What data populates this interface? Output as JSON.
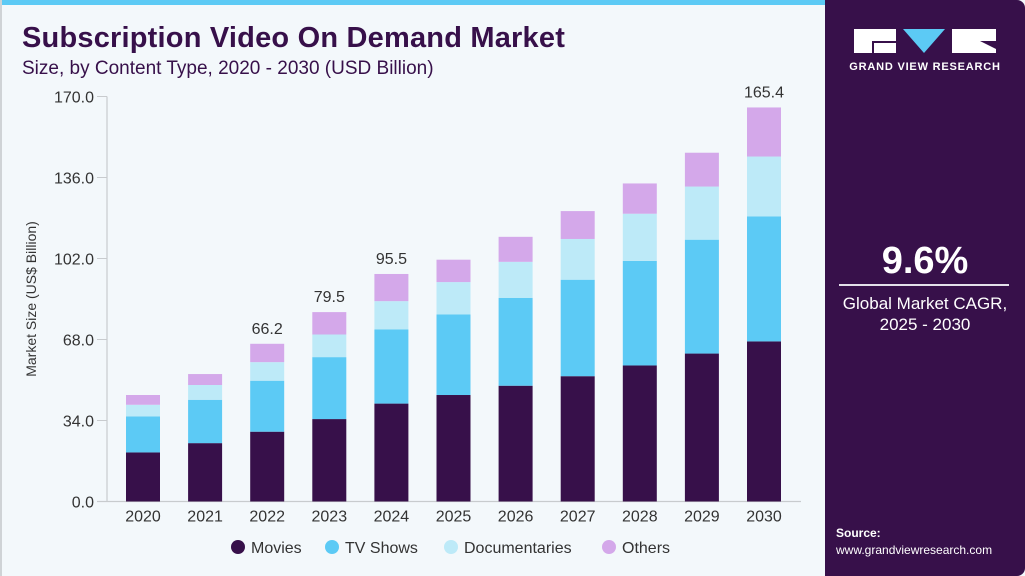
{
  "header": {
    "title": "Subscription Video On Demand Market",
    "subtitle": "Size, by Content Type, 2020 - 2030 (USD Billion)"
  },
  "sidebar": {
    "logo_text": "GRAND VIEW RESEARCH",
    "cagr_value": "9.6%",
    "cagr_label_line1": "Global Market CAGR,",
    "cagr_label_line2": "2025 - 2030",
    "source_label": "Source:",
    "source_url": "www.grandviewresearch.com"
  },
  "chart_data": {
    "type": "bar",
    "stacked": true,
    "title": "Subscription Video On Demand Market",
    "ylabel": "Market Size (US$ Billion)",
    "xlabel": "",
    "ylim": [
      0,
      170
    ],
    "yticks": [
      "0.0",
      "34.0",
      "68.0",
      "102.0",
      "136.0",
      "170.0"
    ],
    "categories": [
      "2020",
      "2021",
      "2022",
      "2023",
      "2024",
      "2025",
      "2026",
      "2027",
      "2028",
      "2029",
      "2030"
    ],
    "series": [
      {
        "name": "Movies",
        "color": "#37104a",
        "values": [
          20.6,
          24.5,
          29.3,
          34.6,
          41.1,
          44.7,
          48.6,
          52.6,
          57.1,
          62.1,
          67.2
        ]
      },
      {
        "name": "TV Shows",
        "color": "#5ccaf5",
        "values": [
          15.1,
          18.2,
          21.4,
          26.0,
          31.1,
          33.8,
          36.9,
          40.5,
          43.9,
          47.8,
          52.5
        ]
      },
      {
        "name": "Documentaries",
        "color": "#bdeaf8",
        "values": [
          4.9,
          6.2,
          7.8,
          9.5,
          11.9,
          13.6,
          15.1,
          17.1,
          19.8,
          22.3,
          25.1
        ]
      },
      {
        "name": "Others",
        "color": "#d4a8ea",
        "values": [
          4.1,
          4.6,
          7.7,
          9.4,
          11.4,
          9.4,
          10.5,
          11.7,
          12.7,
          14.2,
          20.6
        ]
      }
    ],
    "data_labels": {
      "2022": "66.2",
      "2023": "79.5",
      "2024": "95.5",
      "2030": "165.4"
    },
    "legend_position": "bottom",
    "grid": false
  },
  "colors": {
    "brand_dark": "#37104a",
    "accent": "#5ccaf5",
    "background": "#f3f8fb"
  }
}
